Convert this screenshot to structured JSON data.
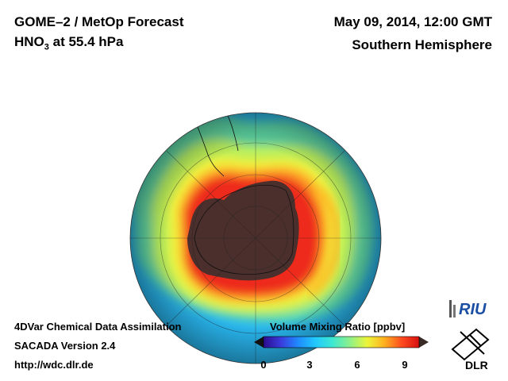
{
  "header": {
    "title_prefix": "GOME–2 / MetOp Forecast",
    "species_main": "HNO",
    "species_sub": "3",
    "species_rest": " at 55.4 hPa",
    "datetime": "May 09, 2014, 12:00 GMT",
    "hemisphere": "Southern Hemisphere"
  },
  "footer": {
    "line1": "4DVar Chemical Data Assimilation",
    "line2": "SACADA Version 2.4",
    "line3": "http://wdc.dlr.de"
  },
  "colorbar": {
    "title": "Volume Mixing Ratio [ppbv]",
    "ticks": [
      "0",
      "3",
      "6",
      "9"
    ],
    "colors": [
      "#2b0c8e",
      "#3a3bdc",
      "#1f8bff",
      "#21c8ff",
      "#3fe8d0",
      "#8ef089",
      "#ecf53a",
      "#ffb020",
      "#ff4b1f",
      "#d61010"
    ]
  },
  "logos": {
    "riu": "RIU",
    "dlr": "DLR"
  }
}
